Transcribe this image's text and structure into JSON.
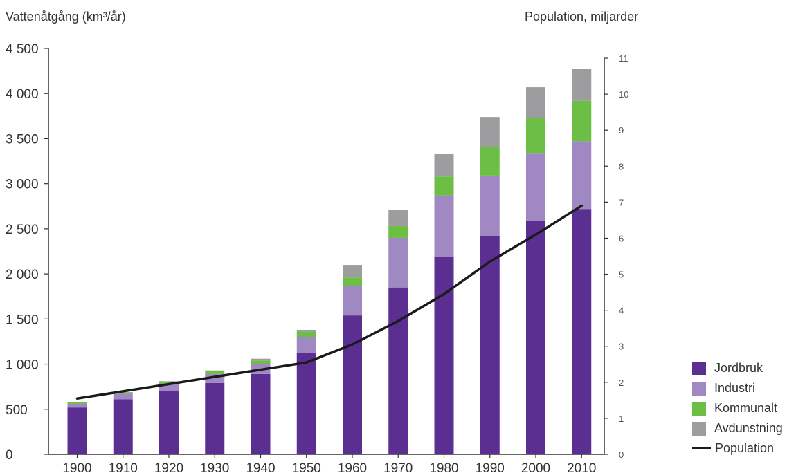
{
  "chart_data": {
    "type": "bar",
    "stacked": true,
    "categories": [
      "1900",
      "1910",
      "1920",
      "1930",
      "1940",
      "1950",
      "1960",
      "1970",
      "1980",
      "1990",
      "2000",
      "2010"
    ],
    "series": [
      {
        "name": "Jordbruk",
        "color": "#5b2e91",
        "values": [
          520,
          610,
          700,
          790,
          890,
          1120,
          1540,
          1850,
          2190,
          2420,
          2590,
          2720
        ]
      },
      {
        "name": "Industri",
        "color": "#a088c2",
        "values": [
          40,
          60,
          80,
          100,
          110,
          180,
          330,
          550,
          680,
          670,
          750,
          750
        ]
      },
      {
        "name": "Kommunalt",
        "color": "#6cbe45",
        "values": [
          15,
          15,
          25,
          30,
          40,
          60,
          90,
          130,
          210,
          320,
          390,
          450
        ]
      },
      {
        "name": "Avdunstning",
        "color": "#9d9d9f",
        "values": [
          5,
          5,
          5,
          10,
          20,
          20,
          140,
          180,
          250,
          330,
          340,
          350
        ]
      }
    ],
    "line_series": {
      "name": "Population",
      "color": "#1a1a1a",
      "axis": "right",
      "values": [
        1.55,
        1.75,
        1.95,
        2.15,
        2.35,
        2.55,
        3.05,
        3.7,
        4.45,
        5.35,
        6.1,
        6.9
      ]
    },
    "title": "",
    "ylabel": "Vattenåtgång (km³/år)",
    "y2label": "Population, miljarder",
    "xlabel": "",
    "ylim": [
      0,
      4500
    ],
    "y2lim": [
      0,
      11
    ],
    "yticks": [
      "0",
      "500",
      "1 000",
      "1 500",
      "2 000",
      "2 500",
      "3 000",
      "3 500",
      "4 000",
      "4 500"
    ],
    "y2ticks": [
      "0",
      "1",
      "2",
      "3",
      "4",
      "5",
      "6",
      "7",
      "8",
      "9",
      "10",
      "11"
    ],
    "grid": false,
    "legend_position": "right-bottom",
    "legend": [
      "Jordbruk",
      "Industri",
      "Kommunalt",
      "Avdunstning",
      "Population"
    ]
  }
}
